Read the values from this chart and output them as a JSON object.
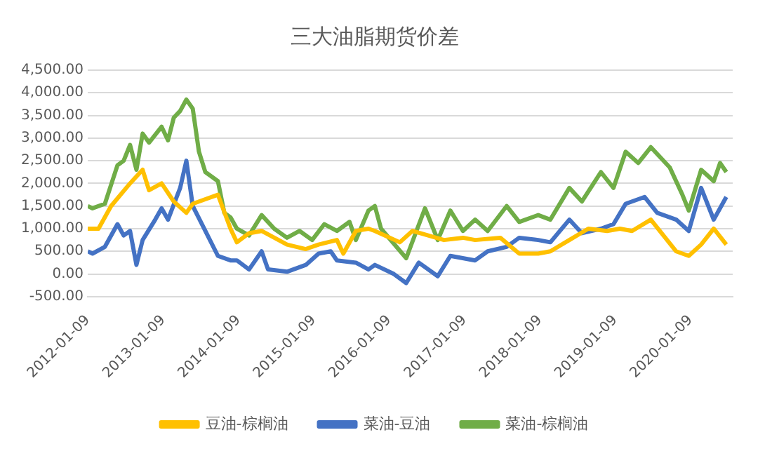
{
  "chart_data": {
    "type": "line",
    "title": "三大油脂期货价差",
    "xlim": [
      "2012-01-09",
      "2020-08-01"
    ],
    "xticks": [
      "2012-01-09",
      "2013-01-09",
      "2014-01-09",
      "2015-01-09",
      "2016-01-09",
      "2017-01-09",
      "2018-01-09",
      "2019-01-09",
      "2020-01-09"
    ],
    "ylim": [
      -500,
      4500
    ],
    "yticks": [
      {
        "value": -500,
        "label": "-500.00"
      },
      {
        "value": 0,
        "label": "0.00"
      },
      {
        "value": 500,
        "label": "500.00"
      },
      {
        "value": 1000,
        "label": "1,000.00"
      },
      {
        "value": 1500,
        "label": "1,500.00"
      },
      {
        "value": 2000,
        "label": "2,000.00"
      },
      {
        "value": 2500,
        "label": "2,500.00"
      },
      {
        "value": 3000,
        "label": "3,000.00"
      },
      {
        "value": 3500,
        "label": "3,500.00"
      },
      {
        "value": 4000,
        "label": "4,000.00"
      },
      {
        "value": 4500,
        "label": "4,500.00"
      }
    ],
    "grid": "y",
    "legend": "bottom",
    "marker": "none",
    "line_style": "solid",
    "series": [
      {
        "name": "豆油-棕榈油",
        "color": "#ffc000",
        "x": [
          "2012-01-09",
          "2012-03",
          "2012-05",
          "2012-08",
          "2012-10",
          "2012-11",
          "2013-01",
          "2013-03",
          "2013-05",
          "2013-06",
          "2013-08",
          "2013-10",
          "2013-12",
          "2014-01",
          "2014-03",
          "2014-05",
          "2014-09",
          "2014-12",
          "2015-02",
          "2015-05",
          "2015-06",
          "2015-08",
          "2015-10",
          "2015-11",
          "2016-03",
          "2016-05",
          "2016-10",
          "2017-01",
          "2017-03",
          "2017-07",
          "2017-10",
          "2018-01",
          "2018-03",
          "2018-06",
          "2018-09",
          "2018-12",
          "2019-02",
          "2019-04",
          "2019-07",
          "2019-11",
          "2020-01",
          "2020-03",
          "2020-05",
          "2020-07"
        ],
        "values": [
          1000,
          1000,
          1500,
          2000,
          2300,
          1850,
          2000,
          1600,
          1350,
          1550,
          1650,
          1750,
          1000,
          700,
          900,
          950,
          650,
          550,
          650,
          750,
          450,
          950,
          1000,
          950,
          700,
          950,
          750,
          800,
          750,
          800,
          450,
          450,
          500,
          750,
          1000,
          950,
          1000,
          950,
          1200,
          500,
          400,
          650,
          1000,
          650
        ]
      },
      {
        "name": "菜油-豆油",
        "color": "#4472c4",
        "x": [
          "2012-01-09",
          "2012-02",
          "2012-04",
          "2012-06",
          "2012-07",
          "2012-08",
          "2012-09",
          "2012-10",
          "2012-12",
          "2013-01",
          "2013-02",
          "2013-04",
          "2013-05",
          "2013-06",
          "2013-08",
          "2013-10",
          "2013-12",
          "2014-01",
          "2014-03",
          "2014-05",
          "2014-06",
          "2014-09",
          "2014-12",
          "2015-02",
          "2015-04",
          "2015-05",
          "2015-08",
          "2015-10",
          "2015-11",
          "2016-02",
          "2016-04",
          "2016-06",
          "2016-09",
          "2016-11",
          "2017-03",
          "2017-05",
          "2017-08",
          "2017-10",
          "2018-01",
          "2018-03",
          "2018-06",
          "2018-08",
          "2018-11",
          "2019-01",
          "2019-03",
          "2019-06",
          "2019-08",
          "2019-11",
          "2020-01",
          "2020-03",
          "2020-05",
          "2020-07"
        ],
        "values": [
          500,
          450,
          600,
          1100,
          850,
          950,
          200,
          750,
          1200,
          1450,
          1200,
          1900,
          2500,
          1500,
          950,
          400,
          300,
          300,
          100,
          500,
          100,
          50,
          200,
          450,
          500,
          300,
          250,
          100,
          200,
          0,
          -200,
          250,
          -50,
          400,
          300,
          500,
          600,
          800,
          750,
          700,
          1200,
          900,
          1000,
          1100,
          1550,
          1700,
          1350,
          1200,
          950,
          1900,
          1200,
          1700
        ]
      },
      {
        "name": "菜油-棕榈油",
        "color": "#70ad47",
        "x": [
          "2012-01-09",
          "2012-02",
          "2012-04",
          "2012-06",
          "2012-07",
          "2012-08",
          "2012-09",
          "2012-10",
          "2012-11",
          "2013-01",
          "2013-02",
          "2013-03",
          "2013-04",
          "2013-05",
          "2013-06",
          "2013-07",
          "2013-08",
          "2013-10",
          "2013-11",
          "2013-12",
          "2014-01",
          "2014-03",
          "2014-05",
          "2014-07",
          "2014-09",
          "2014-11",
          "2015-01",
          "2015-03",
          "2015-05",
          "2015-07",
          "2015-08",
          "2015-10",
          "2015-11",
          "2015-12",
          "2016-04",
          "2016-07",
          "2016-09",
          "2016-11",
          "2017-01",
          "2017-03",
          "2017-05",
          "2017-08",
          "2017-10",
          "2018-01",
          "2018-03",
          "2018-06",
          "2018-08",
          "2018-11",
          "2019-01",
          "2019-03",
          "2019-05",
          "2019-07",
          "2019-10",
          "2019-12",
          "2020-01",
          "2020-03",
          "2020-05",
          "2020-06",
          "2020-07"
        ],
        "values": [
          1500,
          1450,
          1550,
          2400,
          2500,
          2850,
          2300,
          3100,
          2900,
          3250,
          2950,
          3450,
          3600,
          3850,
          3650,
          2700,
          2250,
          2050,
          1350,
          1250,
          1000,
          850,
          1300,
          1000,
          800,
          950,
          750,
          1100,
          950,
          1150,
          750,
          1400,
          1500,
          1000,
          350,
          1450,
          750,
          1400,
          950,
          1200,
          950,
          1500,
          1150,
          1300,
          1200,
          1900,
          1600,
          2250,
          1900,
          2700,
          2450,
          2800,
          2350,
          1750,
          1400,
          2300,
          2050,
          2450,
          2250
        ]
      }
    ]
  }
}
